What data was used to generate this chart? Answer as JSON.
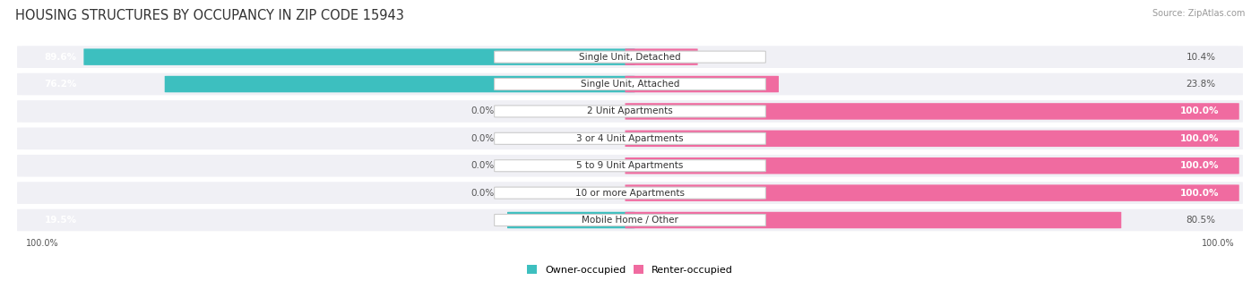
{
  "title": "HOUSING STRUCTURES BY OCCUPANCY IN ZIP CODE 15943",
  "source": "Source: ZipAtlas.com",
  "categories": [
    "Single Unit, Detached",
    "Single Unit, Attached",
    "2 Unit Apartments",
    "3 or 4 Unit Apartments",
    "5 to 9 Unit Apartments",
    "10 or more Apartments",
    "Mobile Home / Other"
  ],
  "owner_pct": [
    89.6,
    76.2,
    0.0,
    0.0,
    0.0,
    0.0,
    19.5
  ],
  "renter_pct": [
    10.4,
    23.8,
    100.0,
    100.0,
    100.0,
    100.0,
    80.5
  ],
  "owner_color": "#3DBFBF",
  "renter_color": "#F06BA0",
  "row_bg_color": "#F0F0F5",
  "background_color": "#FFFFFF",
  "title_fontsize": 10.5,
  "label_fontsize": 7.5,
  "value_fontsize": 7.5,
  "legend_fontsize": 8
}
